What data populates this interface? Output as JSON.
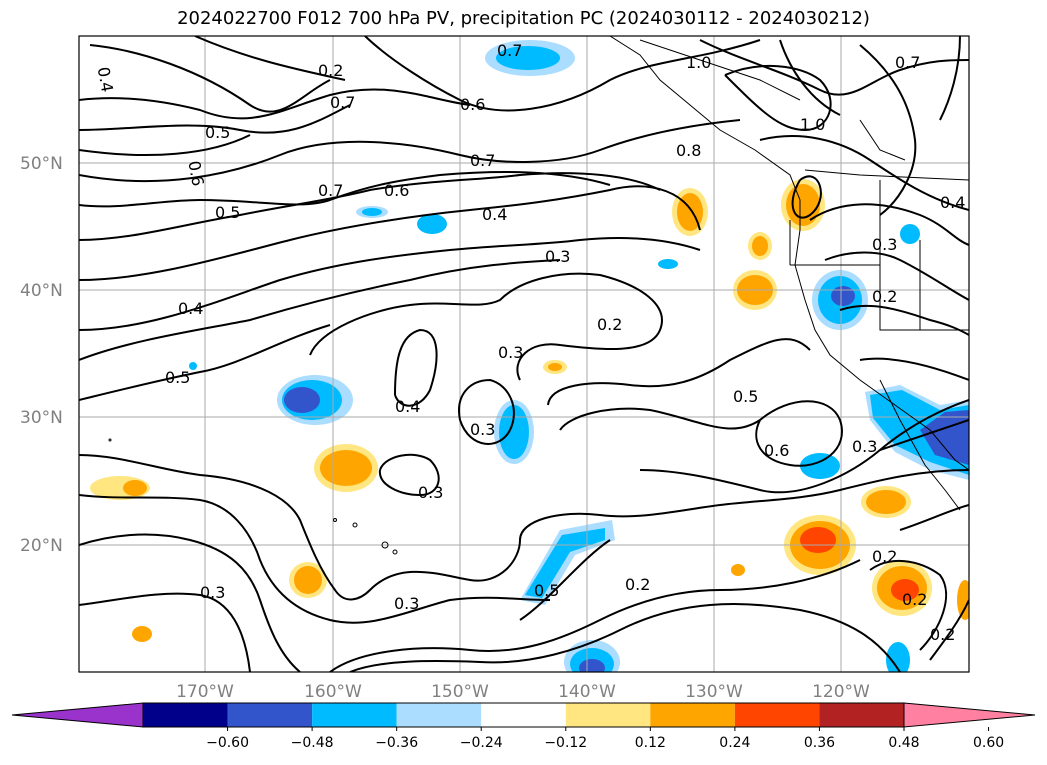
{
  "title": "2024022700 F012 700 hPa PV, precipitation PC (2024030112 - 2024030212)",
  "lat_labels": [
    "50°N",
    "40°N",
    "30°N",
    "20°N"
  ],
  "lon_labels": [
    "170°W",
    "160°W",
    "150°W",
    "140°W",
    "130°W",
    "120°W"
  ],
  "contour_labels": [
    "0.7",
    "0.4",
    "0.6",
    "0.7",
    "1.0",
    "0.7",
    "0.5",
    "0.6",
    "0.7",
    "0.8",
    "1.0",
    "0.5",
    "0.7",
    "0.6",
    "0.4",
    "0.4",
    "0.3",
    "0.3",
    "0.2",
    "0.3",
    "0.2",
    "0.4",
    "0.5",
    "0.4",
    "0.3",
    "0.5",
    "0.3",
    "0.6",
    "0.3",
    "0.3",
    "0.5",
    "0.2",
    "0.3",
    "0.2",
    "0.2",
    "0.2",
    "0.2"
  ],
  "colorbar": {
    "colors": [
      "#9933cc",
      "#00008b",
      "#3355cc",
      "#00bbff",
      "#aaddff",
      "#ffffff",
      "#ffe680",
      "#ffa500",
      "#ff4500",
      "#b22222",
      "#ff80a0"
    ],
    "ticks": [
      "−0.60",
      "−0.48",
      "−0.36",
      "−0.24",
      "−0.12",
      "0.12",
      "0.24",
      "0.36",
      "0.48",
      "0.60"
    ]
  },
  "palette": {
    "neg_strong": "#3355cc",
    "neg_mid": "#00bbff",
    "neg_light": "#aaddff",
    "pos_light": "#ffe680",
    "pos_mid": "#ffa500",
    "pos_strong": "#ff4500"
  }
}
